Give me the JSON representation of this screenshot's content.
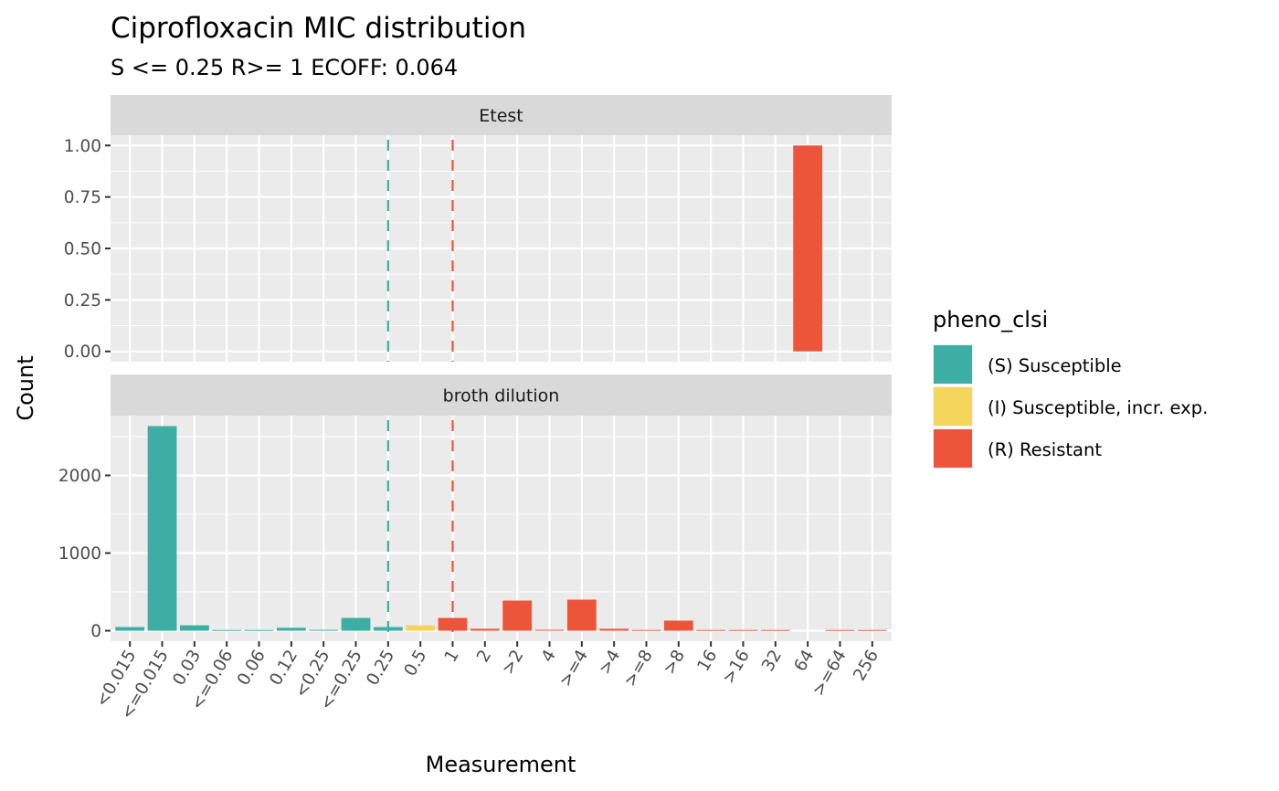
{
  "chart_data": {
    "type": "bar",
    "title": "Ciprofloxacin MIC distribution",
    "subtitle": "S <= 0.25 R>= 1 ECOFF: 0.064",
    "xlabel": "Measurement",
    "ylabel": "Count",
    "categories": [
      "<0.015",
      "<=0.015",
      "0.03",
      "<=0.06",
      "0.06",
      "0.12",
      "<0.25",
      "<=0.25",
      "0.25",
      "0.5",
      "1",
      "2",
      ">2",
      "4",
      ">=4",
      ">4",
      ">=8",
      ">8",
      "16",
      ">16",
      "32",
      "64",
      ">=64",
      "256"
    ],
    "legend": {
      "title": "pheno_clsi",
      "position": "right",
      "entries": [
        {
          "key": "S",
          "label": "(S) Susceptible",
          "color": "#3CAEA3"
        },
        {
          "key": "I",
          "label": "(I) Susceptible, incr. exp.",
          "color": "#F5D55C"
        },
        {
          "key": "R",
          "label": "(R) Resistant",
          "color": "#ED553B"
        }
      ]
    },
    "breakpoint_lines": [
      {
        "category": "0.25",
        "color": "#3CAEA3",
        "style": "dashed",
        "meaning": "S breakpoint"
      },
      {
        "category": "1",
        "color": "#ED553B",
        "style": "dashed",
        "meaning": "R breakpoint"
      }
    ],
    "grid": true,
    "facets": [
      {
        "name": "Etest",
        "ylim": [
          -0.05,
          1.05
        ],
        "yticks": [
          0.0,
          0.25,
          0.5,
          0.75,
          1.0
        ],
        "ytick_labels": [
          "0.00",
          "0.25",
          "0.50",
          "0.75",
          "1.00"
        ],
        "bars": [
          {
            "category": "64",
            "value": 1,
            "class": "R"
          }
        ]
      },
      {
        "name": "broth dilution",
        "ylim": [
          -135,
          2770
        ],
        "yticks": [
          0,
          1000,
          2000
        ],
        "ytick_labels": [
          "0",
          "1000",
          "2000"
        ],
        "bars": [
          {
            "category": "<0.015",
            "value": 47,
            "class": "S"
          },
          {
            "category": "<=0.015",
            "value": 2635,
            "class": "S"
          },
          {
            "category": "0.03",
            "value": 70,
            "class": "S"
          },
          {
            "category": "<=0.06",
            "value": 10,
            "class": "S"
          },
          {
            "category": "0.06",
            "value": 10,
            "class": "S"
          },
          {
            "category": "0.12",
            "value": 38,
            "class": "S"
          },
          {
            "category": "<0.25",
            "value": 12,
            "class": "S"
          },
          {
            "category": "<=0.25",
            "value": 165,
            "class": "S"
          },
          {
            "category": "0.25",
            "value": 47,
            "class": "S"
          },
          {
            "category": "0.5",
            "value": 70,
            "class": "I"
          },
          {
            "category": "1",
            "value": 165,
            "class": "R"
          },
          {
            "category": "2",
            "value": 25,
            "class": "R"
          },
          {
            "category": ">2",
            "value": 388,
            "class": "R"
          },
          {
            "category": "4",
            "value": 12,
            "class": "R"
          },
          {
            "category": ">=4",
            "value": 400,
            "class": "R"
          },
          {
            "category": ">4",
            "value": 25,
            "class": "R"
          },
          {
            "category": ">=8",
            "value": 10,
            "class": "R"
          },
          {
            "category": ">8",
            "value": 130,
            "class": "R"
          },
          {
            "category": "16",
            "value": 10,
            "class": "R"
          },
          {
            "category": ">16",
            "value": 10,
            "class": "R"
          },
          {
            "category": "32",
            "value": 10,
            "class": "R"
          },
          {
            "category": ">=64",
            "value": 10,
            "class": "R"
          },
          {
            "category": "256",
            "value": 10,
            "class": "R"
          }
        ]
      }
    ]
  }
}
